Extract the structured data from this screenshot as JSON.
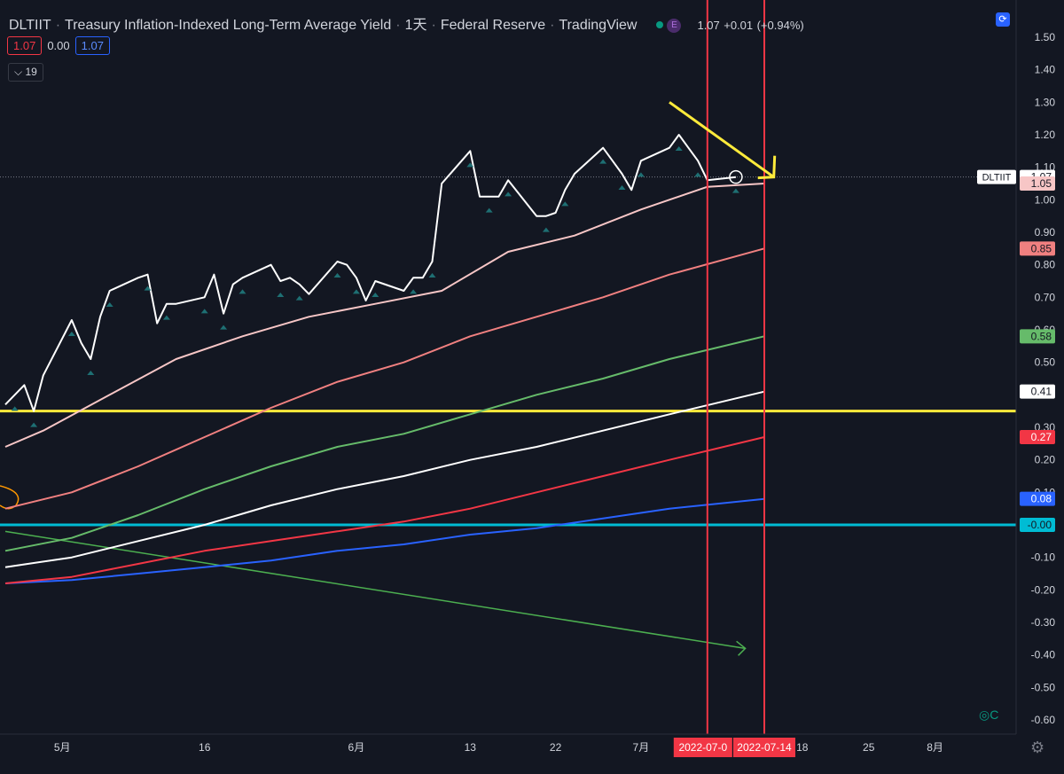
{
  "header": {
    "symbol": "DLTIIT",
    "title": "Treasury Inflation-Indexed Long-Term Average Yield",
    "interval": "1天",
    "source": "Federal Reserve",
    "platform": "TradingView",
    "e_badge": "E",
    "last": "1.07",
    "change": "+0.01",
    "change_pct": "(+0.94%)",
    "val_red": "1.07",
    "val_mid": "0.00",
    "val_blue": "1.07",
    "indicator_count": "19"
  },
  "colors": {
    "background": "#131722",
    "price_line": "#ffffff",
    "ma_pink": "#f7c6c6",
    "ma_salmon": "#f08080",
    "ma_green": "#66bb6a",
    "ma_white": "#ffffff",
    "ma_red": "#f23645",
    "ma_blue": "#2962ff",
    "hline_yellow": "#ffeb3b",
    "hline_cyan": "#00bcd4",
    "vline_red": "#f23645",
    "trend_green": "#4caf50",
    "arrow_yellow": "#ffeb3b"
  },
  "chart_data": {
    "type": "line",
    "y_axis": {
      "range": [
        -0.64,
        1.58
      ],
      "ticks": [
        "1.50",
        "1.40",
        "1.30",
        "1.20",
        "1.10",
        "1.00",
        "0.90",
        "0.80",
        "0.70",
        "0.60",
        "0.50",
        "0.40",
        "0.30",
        "0.20",
        "0.10",
        "0.00",
        "-0.10",
        "-0.20",
        "-0.30",
        "-0.40",
        "-0.50",
        "-0.60"
      ],
      "position": "right"
    },
    "x_axis": {
      "labels": [
        {
          "label": "5月",
          "date": "2022-05-01"
        },
        {
          "label": "16",
          "date": "2022-05-16"
        },
        {
          "label": "6月",
          "date": "2022-06-01"
        },
        {
          "label": "13",
          "date": "2022-06-13"
        },
        {
          "label": "22",
          "date": "2022-06-22"
        },
        {
          "label": "7月",
          "date": "2022-07-01"
        },
        {
          "label": "18",
          "date": "2022-07-18"
        },
        {
          "label": "25",
          "date": "2022-07-25"
        },
        {
          "label": "8月",
          "date": "2022-08-01"
        }
      ],
      "highlight_labels": [
        {
          "label": "2022-07-0",
          "date": "2022-07-08"
        },
        {
          "label": "2022-07-14",
          "date": "2022-07-14"
        }
      ]
    },
    "series": [
      {
        "values": [
          [
            "2022-04-25",
            0.37
          ],
          [
            "2022-04-26",
            0.4
          ],
          [
            "2022-04-27",
            0.43
          ],
          [
            "2022-04-28",
            0.35
          ],
          [
            "2022-04-29",
            0.46
          ],
          [
            "2022-05-02",
            0.63
          ],
          [
            "2022-05-03",
            0.56
          ],
          [
            "2022-05-04",
            0.51
          ],
          [
            "2022-05-05",
            0.64
          ],
          [
            "2022-05-06",
            0.72
          ],
          [
            "2022-05-09",
            0.76
          ],
          [
            "2022-05-10",
            0.77
          ],
          [
            "2022-05-11",
            0.62
          ],
          [
            "2022-05-12",
            0.68
          ],
          [
            "2022-05-13",
            0.68
          ],
          [
            "2022-05-16",
            0.7
          ],
          [
            "2022-05-17",
            0.77
          ],
          [
            "2022-05-18",
            0.65
          ],
          [
            "2022-05-19",
            0.74
          ],
          [
            "2022-05-20",
            0.76
          ],
          [
            "2022-05-23",
            0.8
          ],
          [
            "2022-05-24",
            0.75
          ],
          [
            "2022-05-25",
            0.76
          ],
          [
            "2022-05-26",
            0.74
          ],
          [
            "2022-05-27",
            0.71
          ],
          [
            "2022-05-30",
            0.81
          ],
          [
            "2022-05-31",
            0.8
          ],
          [
            "2022-06-01",
            0.76
          ],
          [
            "2022-06-02",
            0.69
          ],
          [
            "2022-06-03",
            0.75
          ],
          [
            "2022-06-06",
            0.72
          ],
          [
            "2022-06-07",
            0.76
          ],
          [
            "2022-06-08",
            0.76
          ],
          [
            "2022-06-09",
            0.81
          ],
          [
            "2022-06-10",
            1.05
          ],
          [
            "2022-06-13",
            1.15
          ],
          [
            "2022-06-14",
            1.01
          ],
          [
            "2022-06-15",
            1.01
          ],
          [
            "2022-06-16",
            1.01
          ],
          [
            "2022-06-17",
            1.06
          ],
          [
            "2022-06-20",
            0.95
          ],
          [
            "2022-06-21",
            0.95
          ],
          [
            "2022-06-22",
            0.96
          ],
          [
            "2022-06-23",
            1.03
          ],
          [
            "2022-06-24",
            1.08
          ],
          [
            "2022-06-27",
            1.16
          ],
          [
            "2022-06-28",
            1.12
          ],
          [
            "2022-06-29",
            1.08
          ],
          [
            "2022-06-30",
            1.03
          ],
          [
            "2022-07-01",
            1.12
          ],
          [
            "2022-07-04",
            1.16
          ],
          [
            "2022-07-05",
            1.2
          ],
          [
            "2022-07-06",
            1.16
          ],
          [
            "2022-07-07",
            1.12
          ],
          [
            "2022-07-08",
            1.06
          ],
          [
            "2022-07-11",
            1.07
          ]
        ],
        "color_key": "price_line",
        "width": 2
      },
      {
        "values": [
          [
            "2022-04-25",
            0.24
          ],
          [
            "2022-04-29",
            0.29
          ],
          [
            "2022-05-06",
            0.4
          ],
          [
            "2022-05-13",
            0.51
          ],
          [
            "2022-05-20",
            0.58
          ],
          [
            "2022-05-27",
            0.64
          ],
          [
            "2022-06-03",
            0.68
          ],
          [
            "2022-06-10",
            0.72
          ],
          [
            "2022-06-17",
            0.84
          ],
          [
            "2022-06-24",
            0.89
          ],
          [
            "2022-07-01",
            0.97
          ],
          [
            "2022-07-08",
            1.04
          ],
          [
            "2022-07-14",
            1.05
          ]
        ],
        "color_key": "ma_pink",
        "width": 2
      },
      {
        "values": [
          [
            "2022-04-25",
            0.05
          ],
          [
            "2022-05-02",
            0.1
          ],
          [
            "2022-05-09",
            0.18
          ],
          [
            "2022-05-16",
            0.27
          ],
          [
            "2022-05-23",
            0.36
          ],
          [
            "2022-05-30",
            0.44
          ],
          [
            "2022-06-06",
            0.5
          ],
          [
            "2022-06-13",
            0.58
          ],
          [
            "2022-06-20",
            0.64
          ],
          [
            "2022-06-27",
            0.7
          ],
          [
            "2022-07-04",
            0.77
          ],
          [
            "2022-07-14",
            0.85
          ]
        ],
        "color_key": "ma_salmon",
        "width": 2
      },
      {
        "values": [
          [
            "2022-04-25",
            -0.08
          ],
          [
            "2022-05-02",
            -0.04
          ],
          [
            "2022-05-09",
            0.03
          ],
          [
            "2022-05-16",
            0.11
          ],
          [
            "2022-05-23",
            0.18
          ],
          [
            "2022-05-30",
            0.24
          ],
          [
            "2022-06-06",
            0.28
          ],
          [
            "2022-06-13",
            0.34
          ],
          [
            "2022-06-20",
            0.4
          ],
          [
            "2022-06-27",
            0.45
          ],
          [
            "2022-07-04",
            0.51
          ],
          [
            "2022-07-14",
            0.58
          ]
        ],
        "color_key": "ma_green",
        "width": 2
      },
      {
        "values": [
          [
            "2022-04-25",
            -0.13
          ],
          [
            "2022-05-02",
            -0.1
          ],
          [
            "2022-05-09",
            -0.05
          ],
          [
            "2022-05-16",
            0.0
          ],
          [
            "2022-05-23",
            0.06
          ],
          [
            "2022-05-30",
            0.11
          ],
          [
            "2022-06-06",
            0.15
          ],
          [
            "2022-06-13",
            0.2
          ],
          [
            "2022-06-20",
            0.24
          ],
          [
            "2022-06-27",
            0.29
          ],
          [
            "2022-07-04",
            0.34
          ],
          [
            "2022-07-14",
            0.41
          ]
        ],
        "color_key": "ma_white",
        "width": 2
      },
      {
        "values": [
          [
            "2022-04-25",
            -0.18
          ],
          [
            "2022-05-02",
            -0.16
          ],
          [
            "2022-05-09",
            -0.12
          ],
          [
            "2022-05-16",
            -0.08
          ],
          [
            "2022-05-23",
            -0.05
          ],
          [
            "2022-05-30",
            -0.02
          ],
          [
            "2022-06-06",
            0.01
          ],
          [
            "2022-06-13",
            0.05
          ],
          [
            "2022-06-20",
            0.1
          ],
          [
            "2022-06-27",
            0.15
          ],
          [
            "2022-07-04",
            0.2
          ],
          [
            "2022-07-14",
            0.27
          ]
        ],
        "color_key": "ma_red",
        "width": 2
      },
      {
        "values": [
          [
            "2022-04-25",
            -0.18
          ],
          [
            "2022-05-02",
            -0.17
          ],
          [
            "2022-05-09",
            -0.15
          ],
          [
            "2022-05-16",
            -0.13
          ],
          [
            "2022-05-23",
            -0.11
          ],
          [
            "2022-05-30",
            -0.08
          ],
          [
            "2022-06-06",
            -0.06
          ],
          [
            "2022-06-13",
            -0.03
          ],
          [
            "2022-06-20",
            -0.01
          ],
          [
            "2022-06-27",
            0.02
          ],
          [
            "2022-07-04",
            0.05
          ],
          [
            "2022-07-14",
            0.08
          ]
        ],
        "color_key": "ma_blue",
        "width": 2
      }
    ],
    "price_scale_labels": [
      {
        "value": 1.07,
        "text": "1.07",
        "bg": "#ffffff",
        "fg": "#131722",
        "tag": "DLTIIT"
      },
      {
        "value": 1.05,
        "text": "1.05",
        "bg": "#f7c6c6",
        "fg": "#131722"
      },
      {
        "value": 0.85,
        "text": "0.85",
        "bg": "#f08080",
        "fg": "#131722"
      },
      {
        "value": 0.58,
        "text": "0.58",
        "bg": "#66bb6a",
        "fg": "#131722"
      },
      {
        "value": 0.41,
        "text": "0.41",
        "bg": "#ffffff",
        "fg": "#131722"
      },
      {
        "value": 0.27,
        "text": "0.27",
        "bg": "#f23645",
        "fg": "#ffffff"
      },
      {
        "value": 0.08,
        "text": "0.08",
        "bg": "#2962ff",
        "fg": "#ffffff"
      },
      {
        "value": 0.0,
        "text": "-0.00",
        "bg": "#00bcd4",
        "fg": "#131722"
      }
    ],
    "horizontal_lines": [
      {
        "value": 0.35,
        "color_key": "hline_yellow"
      },
      {
        "value": 0.0,
        "color_key": "hline_cyan"
      }
    ],
    "vertical_lines": [
      {
        "date": "2022-07-08",
        "color_key": "vline_red"
      },
      {
        "date": "2022-07-14",
        "color_key": "vline_red"
      }
    ],
    "dotted_price_line": 1.07,
    "annotations": {
      "trend_arrow": {
        "from": [
          "2022-04-25",
          -0.02
        ],
        "to": [
          "2022-07-12",
          -0.38
        ],
        "color_key": "trend_green"
      },
      "yellow_arrow": {
        "from": [
          "2022-07-04",
          1.3
        ],
        "to": [
          "2022-07-15",
          1.07
        ],
        "color_key": "arrow_yellow"
      },
      "circle_at": [
        "2022-07-11",
        1.07
      ]
    },
    "grid": false
  }
}
